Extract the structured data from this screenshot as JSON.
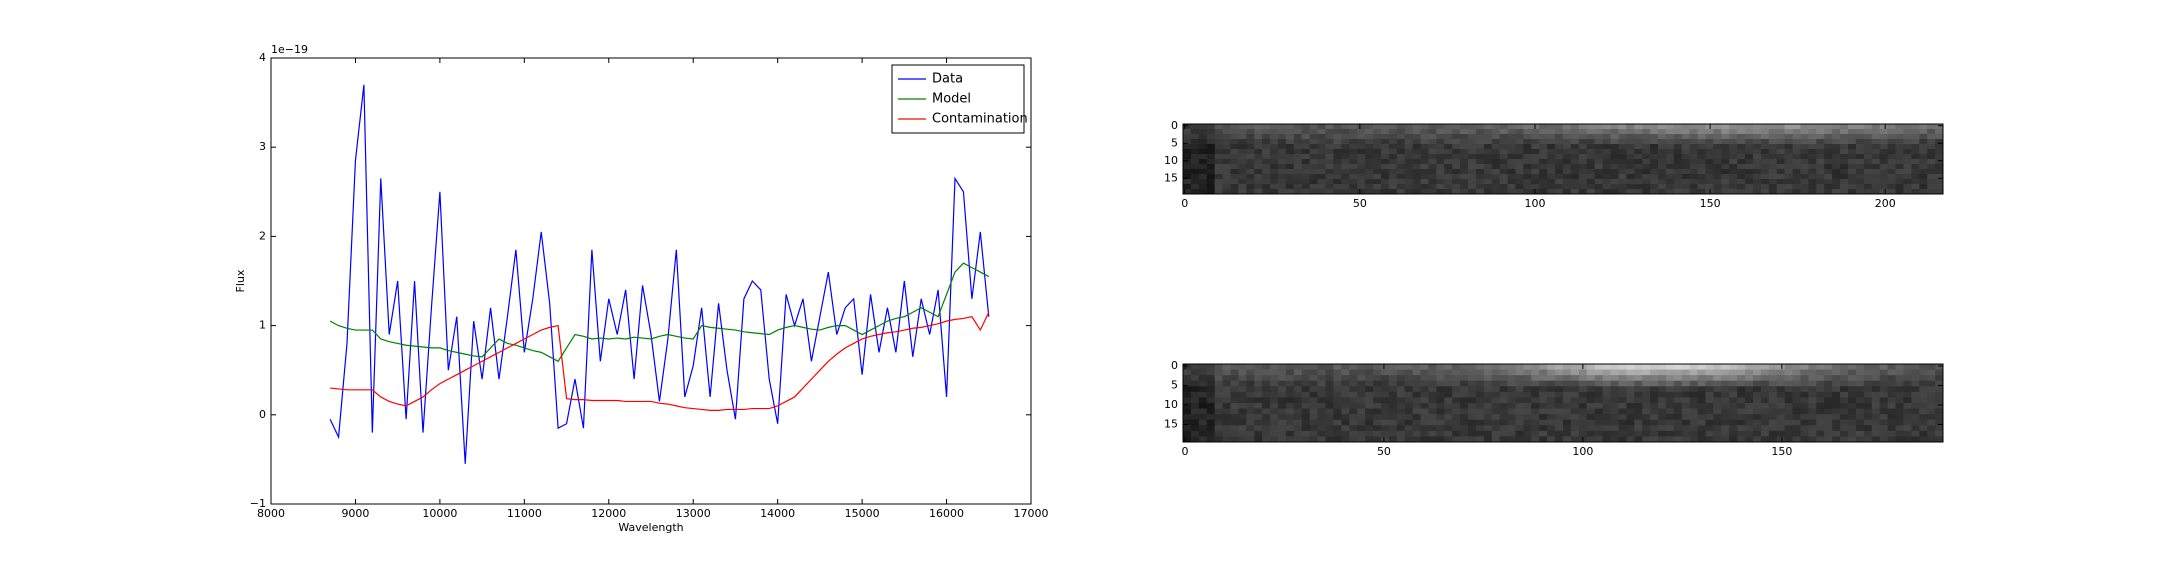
{
  "chart_data": [
    {
      "type": "line",
      "x_label": "Wavelength",
      "y_label": "Flux",
      "y_offset_label": "1e−19",
      "xlim": [
        8000,
        17000
      ],
      "xticks": [
        8000,
        9000,
        10000,
        11000,
        12000,
        13000,
        14000,
        15000,
        16000,
        17000
      ],
      "ylim": [
        -1,
        4
      ],
      "yticks": [
        {
          "value": -1,
          "label": "−1"
        },
        0,
        1,
        2,
        3,
        4
      ],
      "legend": "upper right",
      "x": [
        8700,
        8800,
        8900,
        9000,
        9100,
        9200,
        9300,
        9400,
        9500,
        9600,
        9700,
        9800,
        9900,
        10000,
        10100,
        10200,
        10300,
        10400,
        10500,
        10600,
        10700,
        10800,
        10900,
        11000,
        11100,
        11200,
        11300,
        11400,
        11500,
        11600,
        11700,
        11800,
        11900,
        12000,
        12100,
        12200,
        12300,
        12400,
        12500,
        12600,
        12700,
        12800,
        12900,
        13000,
        13100,
        13200,
        13300,
        13400,
        13500,
        13600,
        13700,
        13800,
        13900,
        14000,
        14100,
        14200,
        14300,
        14400,
        14500,
        14600,
        14700,
        14800,
        14900,
        15000,
        15100,
        15200,
        15300,
        15400,
        15500,
        15600,
        15700,
        15800,
        15900,
        16000,
        16100,
        16200,
        16300,
        16400,
        16500
      ],
      "series": [
        {
          "name": "Data",
          "color": "#0000ff",
          "values": [
            -0.05,
            -0.25,
            0.8,
            2.85,
            3.7,
            -0.2,
            2.65,
            0.9,
            1.5,
            -0.05,
            1.5,
            -0.2,
            1.2,
            2.5,
            0.5,
            1.1,
            -0.55,
            1.05,
            0.4,
            1.2,
            0.4,
            1.1,
            1.85,
            0.7,
            1.3,
            2.05,
            1.25,
            -0.15,
            -0.1,
            0.4,
            -0.15,
            1.85,
            0.6,
            1.3,
            0.9,
            1.4,
            0.4,
            1.45,
            0.9,
            0.15,
            0.85,
            1.85,
            0.2,
            0.55,
            1.2,
            0.2,
            1.25,
            0.5,
            -0.05,
            1.3,
            1.5,
            1.4,
            0.4,
            -0.1,
            1.35,
            1.0,
            1.3,
            0.6,
            1.1,
            1.6,
            0.9,
            1.2,
            1.3,
            0.45,
            1.35,
            0.7,
            1.2,
            0.7,
            1.5,
            0.65,
            1.3,
            0.9,
            1.4,
            0.2,
            2.65,
            2.5,
            1.3,
            2.05,
            1.1
          ]
        },
        {
          "name": "Model",
          "color": "#008000",
          "values": [
            1.05,
            1.0,
            0.97,
            0.95,
            0.95,
            0.95,
            0.85,
            0.82,
            0.8,
            0.78,
            0.77,
            0.76,
            0.75,
            0.75,
            0.72,
            0.7,
            0.68,
            0.66,
            0.65,
            0.75,
            0.85,
            0.8,
            0.78,
            0.75,
            0.72,
            0.7,
            0.65,
            0.6,
            0.75,
            0.9,
            0.88,
            0.85,
            0.86,
            0.85,
            0.86,
            0.85,
            0.87,
            0.86,
            0.85,
            0.88,
            0.9,
            0.88,
            0.86,
            0.85,
            1.0,
            0.98,
            0.97,
            0.96,
            0.95,
            0.93,
            0.92,
            0.91,
            0.9,
            0.95,
            0.98,
            1.0,
            0.98,
            0.96,
            0.95,
            0.98,
            1.0,
            1.0,
            0.95,
            0.9,
            0.95,
            1.0,
            1.05,
            1.08,
            1.1,
            1.15,
            1.2,
            1.15,
            1.1,
            1.35,
            1.6,
            1.7,
            1.65,
            1.6,
            1.55
          ]
        },
        {
          "name": "Contamination",
          "color": "#ff0000",
          "values": [
            0.3,
            0.29,
            0.28,
            0.28,
            0.28,
            0.28,
            0.2,
            0.15,
            0.12,
            0.1,
            0.15,
            0.2,
            0.28,
            0.35,
            0.4,
            0.45,
            0.5,
            0.55,
            0.6,
            0.65,
            0.7,
            0.75,
            0.8,
            0.85,
            0.9,
            0.95,
            0.98,
            1.0,
            0.18,
            0.17,
            0.17,
            0.16,
            0.16,
            0.16,
            0.16,
            0.15,
            0.15,
            0.15,
            0.15,
            0.13,
            0.12,
            0.1,
            0.08,
            0.07,
            0.06,
            0.05,
            0.05,
            0.06,
            0.06,
            0.06,
            0.07,
            0.07,
            0.07,
            0.1,
            0.15,
            0.2,
            0.3,
            0.4,
            0.5,
            0.6,
            0.68,
            0.75,
            0.8,
            0.85,
            0.88,
            0.9,
            0.92,
            0.93,
            0.95,
            0.97,
            0.98,
            1.0,
            1.02,
            1.05,
            1.07,
            1.08,
            1.1,
            0.95,
            1.15
          ]
        }
      ]
    },
    {
      "type": "image",
      "xlim": [
        -0.5,
        216.5
      ],
      "ylim": [
        19.5,
        -0.5
      ],
      "xticks": [
        0,
        50,
        100,
        150,
        200
      ],
      "yticks": [
        0,
        5,
        10,
        15
      ]
    },
    {
      "type": "image",
      "xlim": [
        -0.5,
        190.5
      ],
      "ylim": [
        19.5,
        -0.5
      ],
      "xticks": [
        0,
        50,
        100,
        150
      ],
      "yticks": [
        0,
        5,
        10,
        15
      ]
    }
  ]
}
